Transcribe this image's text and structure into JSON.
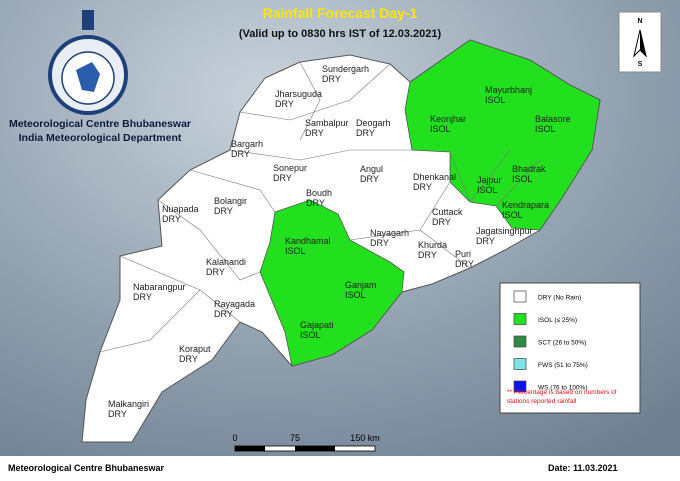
{
  "header": {
    "title": "Rainfall Forecast Day-1",
    "subtitle": "(Valid up to 0830 hrs IST of 12.03.2021)"
  },
  "organization": {
    "line1": "Meteorological Centre Bhubaneswar",
    "line2": "India Meteorological Department"
  },
  "compass": {
    "north": "N",
    "south": "S"
  },
  "districts": [
    {
      "name": "Sundergarh",
      "forecast": "DRY"
    },
    {
      "name": "Jharsuguda",
      "forecast": "DRY"
    },
    {
      "name": "Sambalpur",
      "forecast": "DRY"
    },
    {
      "name": "Deogarh",
      "forecast": "DRY"
    },
    {
      "name": "Bargarh",
      "forecast": "DRY"
    },
    {
      "name": "Sonepur",
      "forecast": "DRY"
    },
    {
      "name": "Angul",
      "forecast": "DRY"
    },
    {
      "name": "Dhenkanal",
      "forecast": "DRY"
    },
    {
      "name": "Boudh",
      "forecast": "DRY"
    },
    {
      "name": "Bolangir",
      "forecast": "DRY"
    },
    {
      "name": "Nuapada",
      "forecast": "DRY"
    },
    {
      "name": "Cuttack",
      "forecast": "DRY"
    },
    {
      "name": "Jagatsinghpur",
      "forecast": "DRY"
    },
    {
      "name": "Nayagarh",
      "forecast": "DRY"
    },
    {
      "name": "Khurda",
      "forecast": "DRY"
    },
    {
      "name": "Puri",
      "forecast": "DRY"
    },
    {
      "name": "Kalahandi",
      "forecast": "DRY"
    },
    {
      "name": "Nabarangpur",
      "forecast": "DRY"
    },
    {
      "name": "Rayagada",
      "forecast": "DRY"
    },
    {
      "name": "Koraput",
      "forecast": "DRY"
    },
    {
      "name": "Malkangiri",
      "forecast": "DRY"
    },
    {
      "name": "Mayurbhanj",
      "forecast": "ISOL"
    },
    {
      "name": "Keonjhar",
      "forecast": "ISOL"
    },
    {
      "name": "Balasore",
      "forecast": "ISOL"
    },
    {
      "name": "Bhadrak",
      "forecast": "ISOL"
    },
    {
      "name": "Jajpur",
      "forecast": "ISOL"
    },
    {
      "name": "Kendrapara",
      "forecast": "ISOL"
    },
    {
      "name": "Kandhamal",
      "forecast": "ISOL"
    },
    {
      "name": "Ganjam",
      "forecast": "ISOL"
    },
    {
      "name": "Gajapati",
      "forecast": "ISOL"
    }
  ],
  "legend": {
    "items": [
      {
        "label": "DRY (No Rain)",
        "color": "#ffffff"
      },
      {
        "label": "ISOL (≤ 25%)",
        "color": "#22e01e"
      },
      {
        "label": "SCT (26 to 50%)",
        "color": "#2e8b45"
      },
      {
        "label": "FWS (51 to 75%)",
        "color": "#7fe3ea"
      },
      {
        "label": "WS (76 to 100%)",
        "color": "#0a10f0"
      }
    ],
    "note": [
      "** Percentage is based on numbers of",
      "stations reported rainfall"
    ]
  },
  "scale_bar": {
    "labels": [
      "0",
      "75",
      "150 km"
    ]
  },
  "footer": {
    "left": "Meteorological Centre Bhubaneswar",
    "right": "Date: 11.03.2021"
  }
}
